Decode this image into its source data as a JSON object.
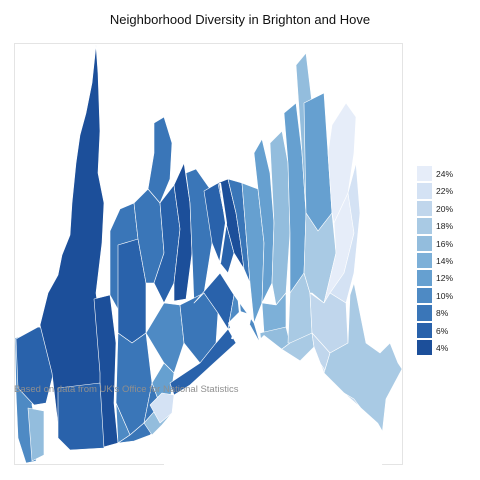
{
  "title": "Neighborhood Diversity in Brighton and Hove",
  "source_note": "Based on data from UK's Office for National Statistics",
  "legend": [
    {
      "label": "24%",
      "color": "#e6edf9"
    },
    {
      "label": "22%",
      "color": "#d4e2f4"
    },
    {
      "label": "20%",
      "color": "#c0d6ec"
    },
    {
      "label": "18%",
      "color": "#a9cae4"
    },
    {
      "label": "16%",
      "color": "#93bddd"
    },
    {
      "label": "14%",
      "color": "#7db0d8"
    },
    {
      "label": "12%",
      "color": "#66a0d0"
    },
    {
      "label": "10%",
      "color": "#4e8ac4"
    },
    {
      "label": "8%",
      "color": "#3a76b8"
    },
    {
      "label": "6%",
      "color": "#2962ab"
    },
    {
      "label": "4%",
      "color": "#1c4f9a"
    }
  ]
}
